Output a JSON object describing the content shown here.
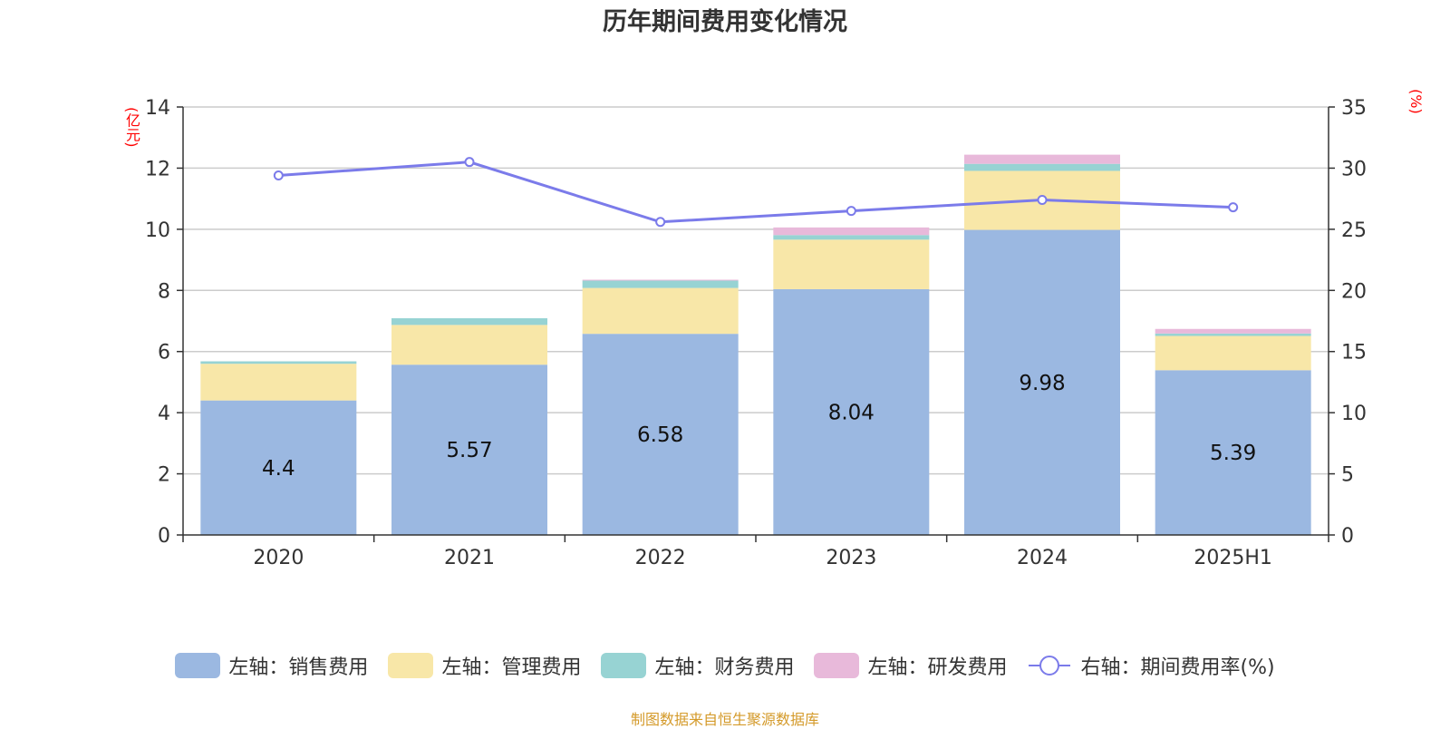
{
  "title": "历年期间费用变化情况",
  "units": {
    "left": "(亿元)",
    "right": "(%)"
  },
  "source": "制图数据来自恒生聚源数据库",
  "chart_data": {
    "type": "bar",
    "stacked": true,
    "categories": [
      "2020",
      "2021",
      "2022",
      "2023",
      "2024",
      "2025H1"
    ],
    "y_left": {
      "label": "(亿元)",
      "ylim": [
        0,
        14
      ],
      "ticks": [
        "0",
        "2",
        "4",
        "6",
        "8",
        "10",
        "12",
        "14"
      ]
    },
    "y_right": {
      "label": "(%)",
      "ylim": [
        0,
        35
      ],
      "ticks": [
        "0",
        "5",
        "10",
        "15",
        "20",
        "25",
        "30",
        "35"
      ]
    },
    "grid": true,
    "legend_position": "bottom",
    "series": [
      {
        "name": "左轴：销售费用",
        "axis": "left",
        "type": "bar",
        "color": "#9bb8e1",
        "values": [
          4.4,
          5.57,
          6.58,
          8.04,
          9.98,
          5.39
        ],
        "data_labels": [
          "4.4",
          "5.57",
          "6.58",
          "8.04",
          "9.98",
          "5.39"
        ]
      },
      {
        "name": "左轴：管理费用",
        "axis": "left",
        "type": "bar",
        "color": "#f8e7a8",
        "values": [
          1.2,
          1.3,
          1.5,
          1.62,
          1.93,
          1.12
        ]
      },
      {
        "name": "左轴：财务费用",
        "axis": "left",
        "type": "bar",
        "color": "#97d3d3",
        "values": [
          0.08,
          0.22,
          0.24,
          0.15,
          0.23,
          0.08
        ]
      },
      {
        "name": "左轴：研发费用",
        "axis": "left",
        "type": "bar",
        "color": "#e8b9da",
        "values": [
          0.0,
          0.0,
          0.03,
          0.25,
          0.3,
          0.15
        ]
      },
      {
        "name": "右轴：期间费用率(%)",
        "axis": "right",
        "type": "line",
        "color": "#7b7bea",
        "values": [
          29.4,
          30.5,
          25.6,
          26.5,
          27.4,
          26.8
        ]
      }
    ]
  }
}
